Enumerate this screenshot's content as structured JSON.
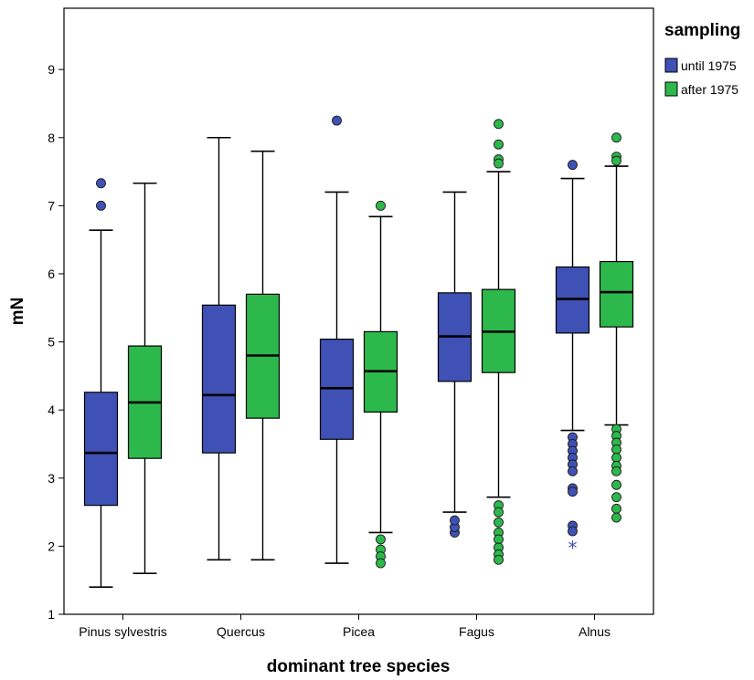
{
  "chart_data": {
    "type": "boxplot",
    "xlabel": "dominant tree species",
    "ylabel": "mN",
    "ylim": [
      1,
      9.9
    ],
    "yticks": [
      1,
      2,
      3,
      4,
      5,
      6,
      7,
      8,
      9
    ],
    "categories": [
      "Pinus sylvestris",
      "Quercus",
      "Picea",
      "Fagus",
      "Alnus"
    ],
    "legend": {
      "title": "sampling",
      "placement": "right"
    },
    "series": [
      {
        "name": "until 1975",
        "color": "#3F51B5",
        "boxes": [
          {
            "min": 1.4,
            "q1": 2.6,
            "median": 3.37,
            "q3": 4.26,
            "max": 6.64,
            "outliers": [
              7.0,
              7.33
            ],
            "extremes": []
          },
          {
            "min": 1.8,
            "q1": 3.37,
            "median": 4.22,
            "q3": 5.54,
            "max": 8.0,
            "outliers": [],
            "extremes": []
          },
          {
            "min": 1.75,
            "q1": 3.57,
            "median": 4.32,
            "q3": 5.04,
            "max": 7.2,
            "outliers": [
              8.25
            ],
            "extremes": []
          },
          {
            "min": 2.5,
            "q1": 4.42,
            "median": 5.08,
            "q3": 5.72,
            "max": 7.2,
            "outliers": [
              2.2,
              2.28,
              2.38
            ],
            "extremes": []
          },
          {
            "min": 3.7,
            "q1": 5.13,
            "median": 5.63,
            "q3": 6.1,
            "max": 7.4,
            "outliers": [
              7.6,
              3.6,
              3.5,
              3.4,
              3.3,
              3.2,
              3.1,
              2.85,
              2.8,
              2.3,
              2.22
            ],
            "extremes": [
              2.0
            ]
          }
        ]
      },
      {
        "name": "after 1975",
        "color": "#2DB84C",
        "boxes": [
          {
            "min": 1.6,
            "q1": 3.29,
            "median": 4.11,
            "q3": 4.94,
            "max": 7.33,
            "outliers": [],
            "extremes": []
          },
          {
            "min": 1.8,
            "q1": 3.88,
            "median": 4.8,
            "q3": 5.7,
            "max": 7.8,
            "outliers": [],
            "extremes": []
          },
          {
            "min": 2.2,
            "q1": 3.97,
            "median": 4.57,
            "q3": 5.15,
            "max": 6.84,
            "outliers": [
              7.0,
              2.1,
              1.95,
              1.85,
              1.75
            ],
            "extremes": []
          },
          {
            "min": 2.72,
            "q1": 4.55,
            "median": 5.15,
            "q3": 5.77,
            "max": 7.5,
            "outliers": [
              8.2,
              7.9,
              7.68,
              7.62,
              2.6,
              2.5,
              2.35,
              2.2,
              2.1,
              1.98,
              1.88,
              1.8
            ],
            "extremes": []
          },
          {
            "min": 3.78,
            "q1": 5.22,
            "median": 5.73,
            "q3": 6.18,
            "max": 7.58,
            "outliers": [
              8.0,
              7.72,
              7.66,
              3.72,
              3.62,
              3.52,
              3.42,
              3.3,
              3.18,
              3.1,
              2.9,
              2.72,
              2.55,
              2.42
            ],
            "extremes": []
          }
        ]
      }
    ]
  }
}
